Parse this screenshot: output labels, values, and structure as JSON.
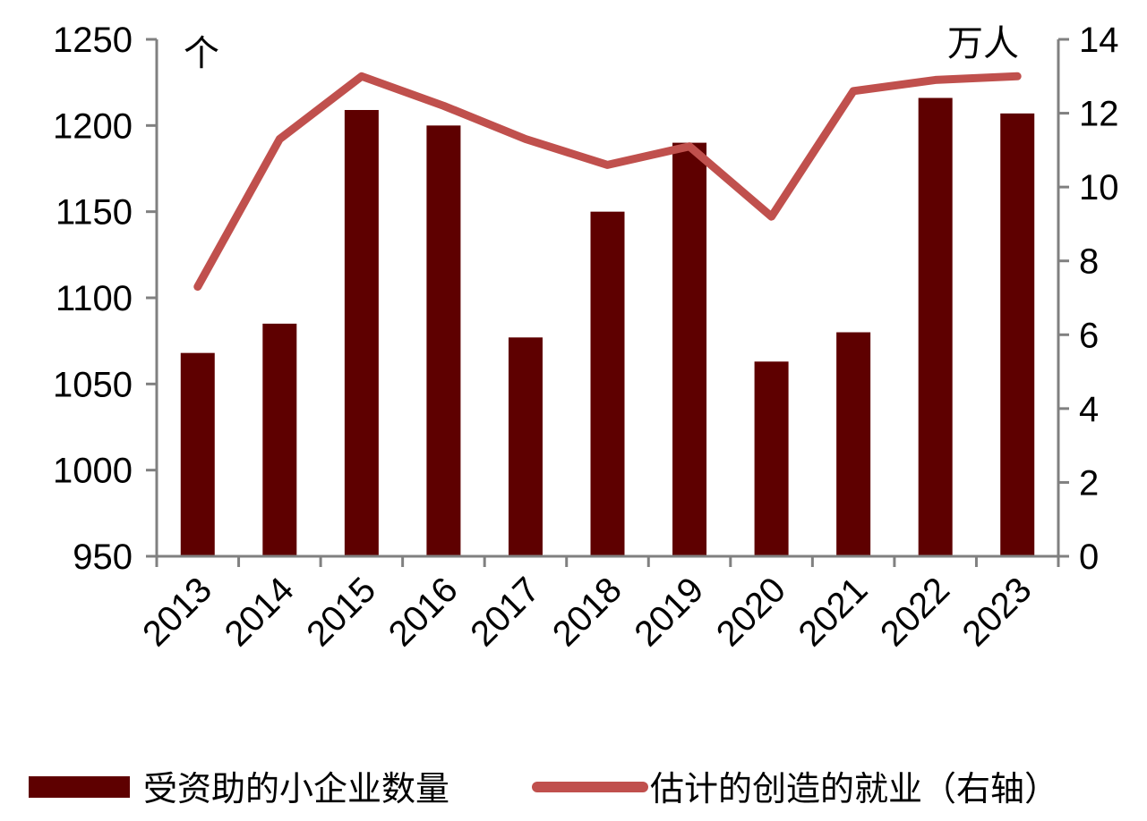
{
  "chart_data": {
    "type": "bar",
    "categories": [
      "2013",
      "2014",
      "2015",
      "2016",
      "2017",
      "2018",
      "2019",
      "2020",
      "2021",
      "2022",
      "2023"
    ],
    "series": [
      {
        "name": "受资助的小企业数量",
        "type": "bar",
        "axis": "left",
        "color": "#5e0000",
        "values": [
          1068,
          1085,
          1209,
          1200,
          1077,
          1150,
          1190,
          1063,
          1080,
          1216,
          1207
        ]
      },
      {
        "name": "估计的创造的就业（右轴）",
        "type": "line",
        "axis": "right",
        "color": "#c0504d",
        "values": [
          7.3,
          11.3,
          13.0,
          12.2,
          11.3,
          10.6,
          11.1,
          9.2,
          12.6,
          12.9,
          13.0
        ]
      }
    ],
    "left_axis": {
      "unit": "个",
      "ylim": [
        950,
        1250
      ],
      "ticks": [
        "950",
        "1000",
        "1050",
        "1100",
        "1150",
        "1200",
        "1250"
      ]
    },
    "right_axis": {
      "unit": "万人",
      "ylim": [
        0,
        14
      ],
      "ticks": [
        "0",
        "2",
        "4",
        "6",
        "8",
        "10",
        "12",
        "14"
      ]
    },
    "grid": false,
    "legend_position": "bottom"
  }
}
